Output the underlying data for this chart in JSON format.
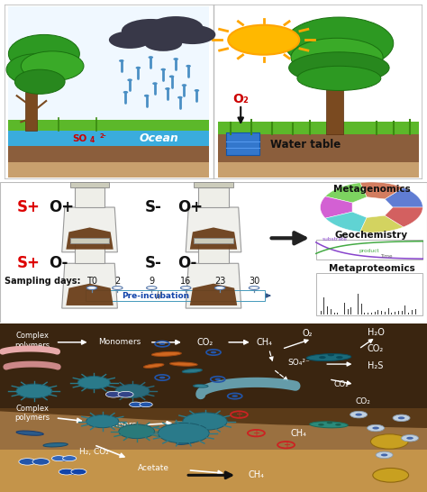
{
  "fig_width": 4.74,
  "fig_height": 5.46,
  "dpi": 100,
  "bg_color": "#ffffff",
  "so4_text": "SO₄²⁻",
  "ocean_text": "Ocean",
  "water_table_text": "Water table",
  "o2_text": "O₂",
  "sampling_days": [
    "T0",
    "2",
    "9",
    "16",
    "23",
    "30"
  ],
  "pre_incubation": "Pre-incubation",
  "analysis_labels": [
    "Metagenomics",
    "Geochemistry",
    "Metaproteomics"
  ],
  "red_color": "#dd0000",
  "left_sky": "#f0f8ff",
  "right_sky": "#ffffff",
  "grass_color": "#5cb82a",
  "ground_color": "#8B5E3C",
  "sand_color": "#c8a06e",
  "ocean_color": "#3aacdd",
  "cloud_color": "#383848",
  "rain_color": "#4a8fc4",
  "sun_color": "#FFB800",
  "sun_ray_color": "#FFA500",
  "tree_trunk": "#7a4a20",
  "tree_foliage": "#2d9922",
  "tree_foliage_edge": "#1a7a10",
  "water_box_color": "#3377cc",
  "panel2_bg": "#ffffff",
  "flask_body": "#e8e8e8",
  "flask_soil": "#6b3f1a",
  "arrow_color": "#2a2a2a",
  "timeline_color": "#aaddee",
  "panel3_dark": "#3a2810",
  "panel3_mid": "#5a3a1a",
  "panel3_light": "#9a7040",
  "teal_dark": "#1a5a6a",
  "teal_mid": "#2a7a8a",
  "teal_light": "#4a9aaa",
  "orange_rod": "#d06820",
  "pink_worm": "#e8a0a0",
  "blue_rod": "#2a4a8a",
  "gold_sphere": "#c8a020"
}
